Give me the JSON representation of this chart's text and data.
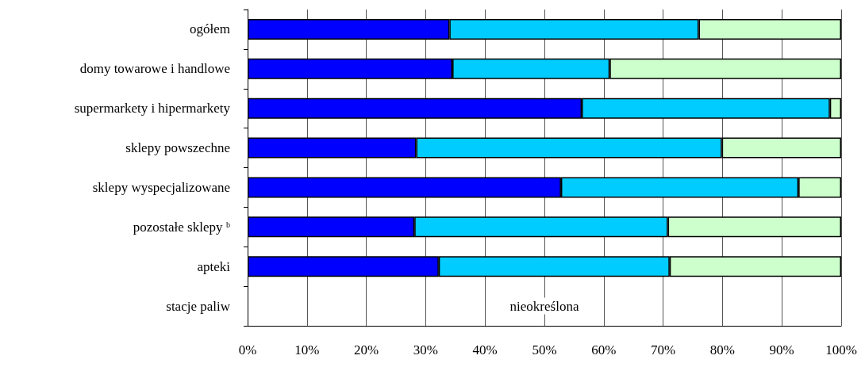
{
  "chart_data": {
    "type": "bar",
    "orientation": "horizontal",
    "stacked": true,
    "categories": [
      "ogółem",
      "domy towarowe i handlowe",
      "supermarkety i hipermarkety",
      "sklepy powszechne",
      "sklepy wyspecjalizowane",
      "pozostałe sklepy ᵇ",
      "apteki",
      "stacje paliw"
    ],
    "series": [
      {
        "color": "#0000ff",
        "values": [
          34,
          34.5,
          56.3,
          28.4,
          52.8,
          28.1,
          32.2,
          null
        ]
      },
      {
        "color": "#00ccff",
        "values": [
          42,
          26.5,
          41.8,
          51.5,
          40,
          42.7,
          38.9,
          null
        ]
      },
      {
        "color": "#ccffcc",
        "values": [
          24,
          39,
          1.9,
          20.1,
          7.2,
          29.2,
          28.9,
          null
        ]
      }
    ],
    "xlim": [
      0,
      100
    ],
    "xticks": [
      {
        "value": 0,
        "label": "0%"
      },
      {
        "value": 10,
        "label": "10%"
      },
      {
        "value": 20,
        "label": "20%"
      },
      {
        "value": 30,
        "label": "30%"
      },
      {
        "value": 40,
        "label": "40%"
      },
      {
        "value": 50,
        "label": "50%"
      },
      {
        "value": 60,
        "label": "60%"
      },
      {
        "value": 70,
        "label": "70%"
      },
      {
        "value": 80,
        "label": "80%"
      },
      {
        "value": 90,
        "label": "90%"
      },
      {
        "value": 100,
        "label": "100%"
      }
    ],
    "grid": "x",
    "annotations": [
      "nieokreślona"
    ]
  }
}
